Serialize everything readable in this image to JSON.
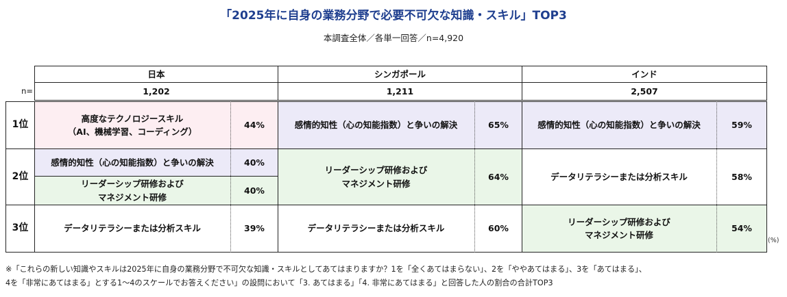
{
  "title": "「2025年に自身の業務分野で必要不可欠な知識・スキル」TOP3",
  "subtitle": "本調査全体／各単一回答／n=4,920",
  "n_label": "n=",
  "countries": [
    {
      "name": "日本",
      "n": "1,202"
    },
    {
      "name": "シンガポール",
      "n": "1,211"
    },
    {
      "name": "インド",
      "n": "2,507"
    }
  ],
  "ranks": [
    "1位",
    "2位",
    "3位"
  ],
  "japan": {
    "r1_line1": "高度なテクノロジースキル",
    "r1_line2": "（AI、機械学習、コーディング）",
    "r1_pct": "44%",
    "r2a": "感情的知性（心の知能指数）と争いの解決",
    "r2a_pct": "40%",
    "r2b_line1": "リーダーシップ研修および",
    "r2b_line2": "マネジメント研修",
    "r2b_pct": "40%",
    "r3": "データリテラシーまたは分析スキル",
    "r3_pct": "39%"
  },
  "singapore": {
    "r1": "感情的知性（心の知能指数）と争いの解決",
    "r1_pct": "65%",
    "r2_line1": "リーダーシップ研修および",
    "r2_line2": "マネジメント研修",
    "r2_pct": "64%",
    "r3": "データリテラシーまたは分析スキル",
    "r3_pct": "60%"
  },
  "india": {
    "r1": "感情的知性（心の知能指数）と争いの解決",
    "r1_pct": "59%",
    "r2": "データリテラシーまたは分析スキル",
    "r2_pct": "58%",
    "r3_line1": "リーダーシップ研修および",
    "r3_line2": "マネジメント研修",
    "r3_pct": "54%"
  },
  "unit": "(%)",
  "footnote_line1": "※「これらの新しい知識やスキルは2025年に自身の業務分野で不可欠な知識・スキルとしてあてはまりますか？1を「全くあてはまらない」、2を「ややあてはまる」、3を「あてはまる」、",
  "footnote_line2": "4を「非常にあてはまる」とする1〜4のスケールでお答えください」の設問において「3. あてはまる」「4. 非常にあてはまる」と回答した人の割合の合計TOP3",
  "colors": {
    "title": "#1f3f8f",
    "pink": "#fdeef2",
    "purple": "#eceaf8",
    "green": "#eaf6e8"
  }
}
